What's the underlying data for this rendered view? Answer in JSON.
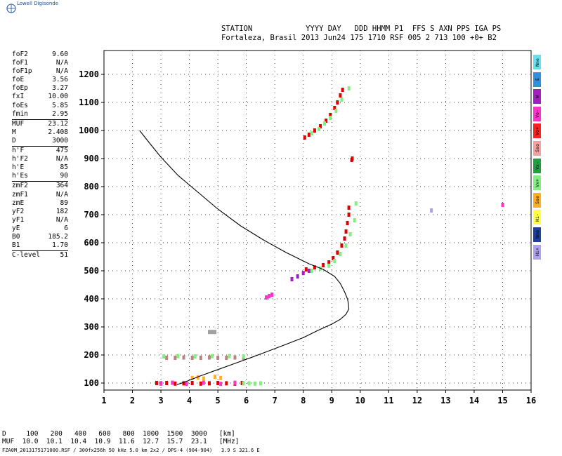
{
  "logo": {
    "text": "Lowell Digisonde"
  },
  "header": {
    "line1": "STATION            YYYY DAY   DDD HHMM P1  FFS S AXN PPS IGA PS",
    "line2": "Fortaleza, Brasil 2013 Jun24 175 1710 RSF 005 2 713 100 +0+ B2"
  },
  "params": [
    {
      "name": "foF2",
      "value": "9.60"
    },
    {
      "name": "foF1",
      "value": "N/A"
    },
    {
      "name": "foF1p",
      "value": "N/A"
    },
    {
      "name": "foE",
      "value": "3.56"
    },
    {
      "name": "foEp",
      "value": "3.27"
    },
    {
      "name": "fxI",
      "value": "10.00"
    },
    {
      "name": "foEs",
      "value": "5.85"
    },
    {
      "name": "fmin",
      "value": "2.95"
    },
    {
      "sep": true
    },
    {
      "name": "MUF",
      "value": "23.12"
    },
    {
      "name": "M",
      "value": "2.408"
    },
    {
      "name": "D",
      "value": "3000"
    },
    {
      "sep": true
    },
    {
      "name": "h'F",
      "value": "475"
    },
    {
      "name": "h'F2",
      "value": "N/A"
    },
    {
      "name": "h'E",
      "value": "85"
    },
    {
      "name": "h'Es",
      "value": "90"
    },
    {
      "sep": true
    },
    {
      "name": "zmF2",
      "value": "364"
    },
    {
      "name": "zmF1",
      "value": "N/A"
    },
    {
      "name": "zmE",
      "value": "89"
    },
    {
      "name": "yF2",
      "value": "182"
    },
    {
      "name": "yF1",
      "value": "N/A"
    },
    {
      "name": "yE",
      "value": "6"
    },
    {
      "name": "B0",
      "value": "185.2"
    },
    {
      "name": "B1",
      "value": "1.70"
    },
    {
      "sep": true
    },
    {
      "name": "C-level",
      "value": "51"
    }
  ],
  "legend": [
    {
      "label": "Nne",
      "color": "#66e0f0"
    },
    {
      "label": "E",
      "color": "#2f8fe0"
    },
    {
      "label": "W",
      "color": "#a020c0"
    },
    {
      "label": "Vo-",
      "color": "#ff33cc"
    },
    {
      "label": "Vo+",
      "color": "#ff2020"
    },
    {
      "label": "Sso",
      "color": "#f4a0a0"
    },
    {
      "label": "Vx-",
      "color": "#20a040"
    },
    {
      "label": "Vx+",
      "color": "#80f080"
    },
    {
      "label": "Sse",
      "color": "#ffb020"
    },
    {
      "label": "Hi-",
      "color": "#ffff40"
    },
    {
      "label": "Nno",
      "color": "#1a3fa0"
    },
    {
      "label": "Hi+",
      "color": "#b0a0f0"
    }
  ],
  "muf_table": {
    "line1": "D     100   200   400   600   800  1000  1500  3000   [km]",
    "line2": "MUF  10.0  10.1  10.4  10.9  11.6  12.7  15.7  23.1   [MHz]"
  },
  "footer": "FZA0M_2013175171000.RSF / 300fx256h 50 kHz 5.0 km 2x2 / DPS-4 (904-904)   3.9 S 321.6 E",
  "chart_data": {
    "type": "scatter",
    "xlim": [
      1,
      16
    ],
    "ylim": [
      75,
      1285
    ],
    "xticks": [
      1,
      2,
      3,
      4,
      5,
      6,
      7,
      8,
      9,
      10,
      11,
      12,
      13,
      14,
      15,
      16
    ],
    "yticks": [
      100,
      200,
      300,
      400,
      500,
      600,
      700,
      800,
      900,
      1000,
      1100,
      1200
    ],
    "grid": true,
    "profile": {
      "name": "",
      "color": "#000000",
      "x": [
        2.25,
        2.6,
        3.0,
        3.6,
        4.3,
        5.0,
        5.8,
        6.6,
        7.4,
        8.2,
        8.7,
        9.1,
        9.3,
        9.45,
        9.55,
        9.58,
        9.6,
        9.5,
        9.3,
        9.0,
        8.5,
        8.0,
        7.4,
        6.8,
        6.2,
        5.6,
        5.0,
        4.4,
        3.9,
        3.56
      ],
      "y": [
        1000,
        955,
        905,
        840,
        780,
        720,
        660,
        610,
        565,
        525,
        505,
        480,
        455,
        425,
        400,
        385,
        364,
        345,
        327,
        310,
        287,
        262,
        238,
        215,
        192,
        170,
        148,
        126,
        106,
        94
      ]
    },
    "echo_traces": [
      {
        "color": "#e00000",
        "points": [
          [
            2.85,
            100
          ],
          [
            3.0,
            99
          ],
          [
            3.2,
            100
          ],
          [
            3.5,
            98
          ],
          [
            3.8,
            99
          ],
          [
            4.1,
            100
          ],
          [
            4.4,
            98
          ],
          [
            4.7,
            99
          ],
          [
            5.0,
            100
          ],
          [
            5.3,
            99
          ],
          [
            5.6,
            98
          ],
          [
            5.85,
            100
          ]
        ]
      },
      {
        "color": "#ff33cc",
        "points": [
          [
            3.0,
            98
          ],
          [
            3.4,
            101
          ],
          [
            3.9,
            97
          ],
          [
            4.5,
            101
          ],
          [
            5.1,
            97
          ],
          [
            5.6,
            101
          ]
        ]
      },
      {
        "color": "#80f080",
        "points": [
          [
            5.9,
            99
          ],
          [
            6.1,
            99
          ],
          [
            6.3,
            98
          ],
          [
            6.5,
            99
          ]
        ]
      },
      {
        "color": "#c08080",
        "points": [
          [
            3.2,
            190
          ],
          [
            3.5,
            190
          ],
          [
            3.8,
            191
          ],
          [
            4.1,
            190
          ],
          [
            4.4,
            190
          ],
          [
            4.7,
            191
          ],
          [
            5.0,
            190
          ],
          [
            5.3,
            190
          ],
          [
            5.6,
            191
          ],
          [
            5.9,
            190
          ]
        ]
      },
      {
        "color": "#ffb020",
        "points": [
          [
            4.1,
            118
          ],
          [
            4.3,
            120
          ],
          [
            4.5,
            116
          ],
          [
            4.9,
            122
          ],
          [
            5.1,
            118
          ]
        ]
      },
      {
        "color": "#80f080",
        "points": [
          [
            3.1,
            195
          ],
          [
            3.6,
            196
          ],
          [
            4.2,
            195
          ],
          [
            4.8,
            196
          ],
          [
            5.4,
            196
          ],
          [
            5.9,
            195
          ]
        ]
      },
      {
        "color": "#a0a0a0",
        "points": [
          [
            4.7,
            282
          ],
          [
            4.8,
            282
          ],
          [
            4.9,
            282
          ]
        ]
      },
      {
        "color": "#ff33cc",
        "points": [
          [
            6.7,
            405
          ],
          [
            6.8,
            410
          ],
          [
            6.9,
            415
          ]
        ]
      },
      {
        "color": "#a020c0",
        "points": [
          [
            7.6,
            470
          ],
          [
            7.8,
            480
          ],
          [
            8.0,
            492
          ],
          [
            8.2,
            500
          ]
        ]
      },
      {
        "color": "#e00000",
        "points": [
          [
            8.1,
            505
          ],
          [
            8.4,
            512
          ],
          [
            8.7,
            520
          ],
          [
            8.9,
            530
          ],
          [
            9.05,
            545
          ],
          [
            9.2,
            565
          ],
          [
            9.35,
            590
          ],
          [
            9.45,
            615
          ],
          [
            9.5,
            640
          ],
          [
            9.55,
            670
          ],
          [
            9.6,
            700
          ],
          [
            9.6,
            725
          ]
        ]
      },
      {
        "color": "#80f080",
        "points": [
          [
            8.3,
            500
          ],
          [
            8.6,
            508
          ],
          [
            8.9,
            518
          ],
          [
            9.1,
            535
          ],
          [
            9.3,
            560
          ],
          [
            9.5,
            590
          ],
          [
            9.65,
            630
          ],
          [
            9.8,
            680
          ],
          [
            9.85,
            740
          ]
        ]
      },
      {
        "color": "#e00000",
        "points": [
          [
            8.05,
            975
          ],
          [
            8.2,
            985
          ],
          [
            8.4,
            1000
          ],
          [
            8.6,
            1015
          ],
          [
            8.8,
            1035
          ],
          [
            8.95,
            1055
          ],
          [
            9.1,
            1080
          ],
          [
            9.2,
            1100
          ],
          [
            9.3,
            1125
          ],
          [
            9.38,
            1145
          ]
        ]
      },
      {
        "color": "#80f080",
        "points": [
          [
            8.3,
            990
          ],
          [
            8.55,
            1005
          ],
          [
            8.75,
            1025
          ],
          [
            8.95,
            1045
          ],
          [
            9.15,
            1070
          ],
          [
            9.35,
            1110
          ],
          [
            9.6,
            1150
          ]
        ]
      },
      {
        "color": "#e00000",
        "points": [
          [
            9.7,
            895
          ],
          [
            9.72,
            900
          ]
        ]
      },
      {
        "color": "#b0a0f0",
        "points": [
          [
            12.5,
            715
          ]
        ]
      },
      {
        "color": "#ff33cc",
        "points": [
          [
            15.0,
            735
          ]
        ]
      }
    ]
  }
}
